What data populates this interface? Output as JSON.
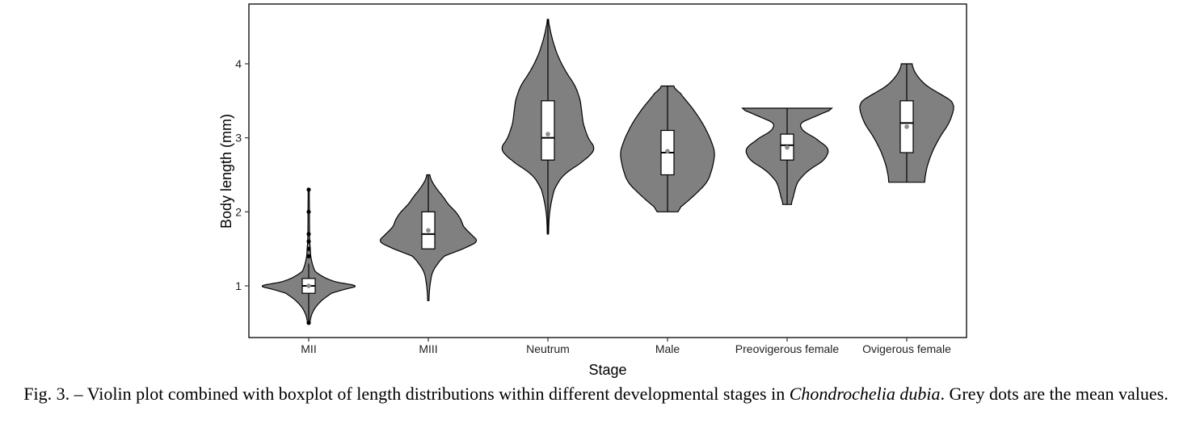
{
  "chart_data": {
    "type": "violin",
    "xlabel": "Stage",
    "ylabel": "Body length (mm)",
    "ylim": [
      0.4,
      4.8
    ],
    "yticks": [
      1,
      2,
      3,
      4
    ],
    "grid": false,
    "categories": [
      "MII",
      "MIII",
      "Neutrum",
      "Male",
      "Preovigerous female",
      "Ovigerous female"
    ],
    "series": [
      {
        "stage": "MII",
        "min": 0.5,
        "q1": 0.9,
        "median": 1.0,
        "q3": 1.1,
        "max": 1.3,
        "mean": 1.0,
        "outliers": [
          1.4,
          1.5,
          1.6,
          1.7,
          2.0,
          2.3,
          0.5
        ],
        "density_profile": [
          [
            0.5,
            0.02
          ],
          [
            0.6,
            0.05
          ],
          [
            0.7,
            0.12
          ],
          [
            0.8,
            0.25
          ],
          [
            0.9,
            0.45
          ],
          [
            0.95,
            0.7
          ],
          [
            1.0,
            1.0
          ],
          [
            1.05,
            0.55
          ],
          [
            1.1,
            0.35
          ],
          [
            1.15,
            0.22
          ],
          [
            1.2,
            0.12
          ],
          [
            1.3,
            0.07
          ],
          [
            1.4,
            0.04
          ],
          [
            1.5,
            0.03
          ],
          [
            1.6,
            0.02
          ],
          [
            1.8,
            0.015
          ],
          [
            2.0,
            0.015
          ],
          [
            2.3,
            0.01
          ]
        ]
      },
      {
        "stage": "MIII",
        "min": 1.5,
        "q1": 1.5,
        "median": 1.7,
        "q3": 2.0,
        "max": 2.5,
        "mean": 1.75,
        "density_profile": [
          [
            0.8,
            0.01
          ],
          [
            1.0,
            0.03
          ],
          [
            1.2,
            0.08
          ],
          [
            1.4,
            0.3
          ],
          [
            1.5,
            0.7
          ],
          [
            1.6,
            1.0
          ],
          [
            1.7,
            0.85
          ],
          [
            1.8,
            0.7
          ],
          [
            1.9,
            0.65
          ],
          [
            2.0,
            0.55
          ],
          [
            2.1,
            0.4
          ],
          [
            2.2,
            0.3
          ],
          [
            2.3,
            0.18
          ],
          [
            2.4,
            0.08
          ],
          [
            2.5,
            0.02
          ]
        ]
      },
      {
        "stage": "Neutrum",
        "min": 1.7,
        "q1": 2.7,
        "median": 3.0,
        "q3": 3.5,
        "max": 4.6,
        "mean": 3.05,
        "density_profile": [
          [
            1.7,
            0.01
          ],
          [
            2.0,
            0.03
          ],
          [
            2.3,
            0.12
          ],
          [
            2.5,
            0.3
          ],
          [
            2.7,
            0.75
          ],
          [
            2.85,
            0.95
          ],
          [
            3.0,
            0.8
          ],
          [
            3.2,
            0.7
          ],
          [
            3.5,
            0.65
          ],
          [
            3.7,
            0.55
          ],
          [
            3.9,
            0.35
          ],
          [
            4.1,
            0.2
          ],
          [
            4.3,
            0.1
          ],
          [
            4.5,
            0.03
          ],
          [
            4.6,
            0.01
          ]
        ]
      },
      {
        "stage": "Male",
        "min": 2.0,
        "q1": 2.5,
        "median": 2.8,
        "q3": 3.1,
        "max": 3.7,
        "mean": 2.82,
        "density_profile": [
          [
            2.0,
            0.15
          ],
          [
            2.2,
            0.5
          ],
          [
            2.4,
            0.8
          ],
          [
            2.6,
            0.9
          ],
          [
            2.8,
            0.95
          ],
          [
            3.0,
            0.85
          ],
          [
            3.2,
            0.7
          ],
          [
            3.4,
            0.5
          ],
          [
            3.6,
            0.25
          ],
          [
            3.7,
            0.1
          ]
        ]
      },
      {
        "stage": "Preovigerous female",
        "min": 2.1,
        "q1": 2.7,
        "median": 2.9,
        "q3": 3.05,
        "max": 3.4,
        "mean": 2.87,
        "density_profile": [
          [
            2.1,
            0.08
          ],
          [
            2.2,
            0.12
          ],
          [
            2.4,
            0.2
          ],
          [
            2.55,
            0.4
          ],
          [
            2.7,
            0.75
          ],
          [
            2.85,
            0.85
          ],
          [
            3.0,
            0.55
          ],
          [
            3.1,
            0.3
          ],
          [
            3.2,
            0.25
          ],
          [
            3.3,
            0.6
          ],
          [
            3.4,
            0.95
          ]
        ]
      },
      {
        "stage": "Ovigerous female",
        "min": 2.4,
        "q1": 2.8,
        "median": 3.2,
        "q3": 3.5,
        "max": 4.0,
        "mean": 3.15,
        "density_profile": [
          [
            2.4,
            0.35
          ],
          [
            2.6,
            0.4
          ],
          [
            2.8,
            0.5
          ],
          [
            3.0,
            0.65
          ],
          [
            3.2,
            0.85
          ],
          [
            3.4,
            0.95
          ],
          [
            3.5,
            0.9
          ],
          [
            3.6,
            0.65
          ],
          [
            3.7,
            0.4
          ],
          [
            3.8,
            0.25
          ],
          [
            3.9,
            0.15
          ],
          [
            4.0,
            0.1
          ]
        ]
      }
    ]
  },
  "caption": {
    "prefix": "Fig. 3. – Violin plot combined with boxplot of length distributions within different developmental stages in ",
    "species": "Chondrochelia dubia",
    "suffix": ". Grey dots are the mean values."
  },
  "colors": {
    "violin_fill": "#808080",
    "violin_stroke": "#000000",
    "box_fill": "#ffffff",
    "mean_dot": "#8c8c8c"
  }
}
